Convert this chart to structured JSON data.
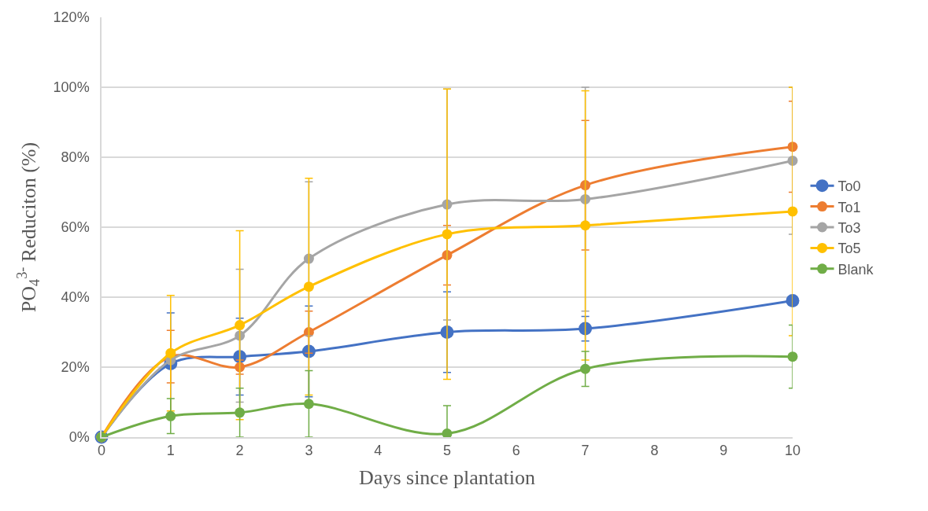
{
  "chart_data": {
    "type": "line",
    "xlabel": "Days since plantation",
    "ylabel": "PO$_{4}$$^{3-}$ Reduciton (%)",
    "x": [
      0,
      1,
      2,
      3,
      5,
      7,
      10
    ],
    "xlim": [
      0,
      10
    ],
    "xticks": [
      0,
      1,
      2,
      3,
      4,
      5,
      6,
      7,
      8,
      9,
      10
    ],
    "ylim": [
      0,
      120
    ],
    "yticks": [
      {
        "value": 0,
        "label": "0%"
      },
      {
        "value": 20,
        "label": "20%"
      },
      {
        "value": 40,
        "label": "40%"
      },
      {
        "value": 60,
        "label": "60%"
      },
      {
        "value": 80,
        "label": "80%"
      },
      {
        "value": 100,
        "label": "100%"
      },
      {
        "value": 120,
        "label": "120%"
      }
    ],
    "grid": "y",
    "legend": "right",
    "marker": "circle",
    "line_style": "solid",
    "series": [
      {
        "name": "To0",
        "color": "#4472c4",
        "values": [
          0,
          21,
          23,
          24.5,
          30,
          31,
          39
        ],
        "errors": [
          null,
          14.5,
          11,
          13,
          11.5,
          3.5,
          null
        ]
      },
      {
        "name": "To1",
        "color": "#ed7d31",
        "values": [
          0,
          23,
          20,
          30,
          52,
          72,
          83
        ],
        "errors": [
          null,
          7.5,
          2,
          6,
          8.5,
          18.5,
          13
        ]
      },
      {
        "name": "To3",
        "color": "#a5a5a5",
        "values": [
          0,
          22,
          29,
          51,
          66.5,
          68,
          79
        ],
        "errors": [
          null,
          null,
          19,
          22,
          33,
          32,
          21
        ]
      },
      {
        "name": "To5",
        "color": "#ffc000",
        "values": [
          0,
          24,
          32,
          43,
          58,
          60.5,
          64.5
        ],
        "errors": [
          null,
          16.5,
          27,
          31,
          41.5,
          38.5,
          35.5
        ]
      },
      {
        "name": "Blank",
        "color": "#70ad47",
        "values": [
          0,
          6,
          7,
          9.5,
          1,
          19.5,
          23
        ],
        "errors": [
          null,
          5,
          7,
          9.5,
          8,
          5,
          9
        ]
      }
    ]
  }
}
